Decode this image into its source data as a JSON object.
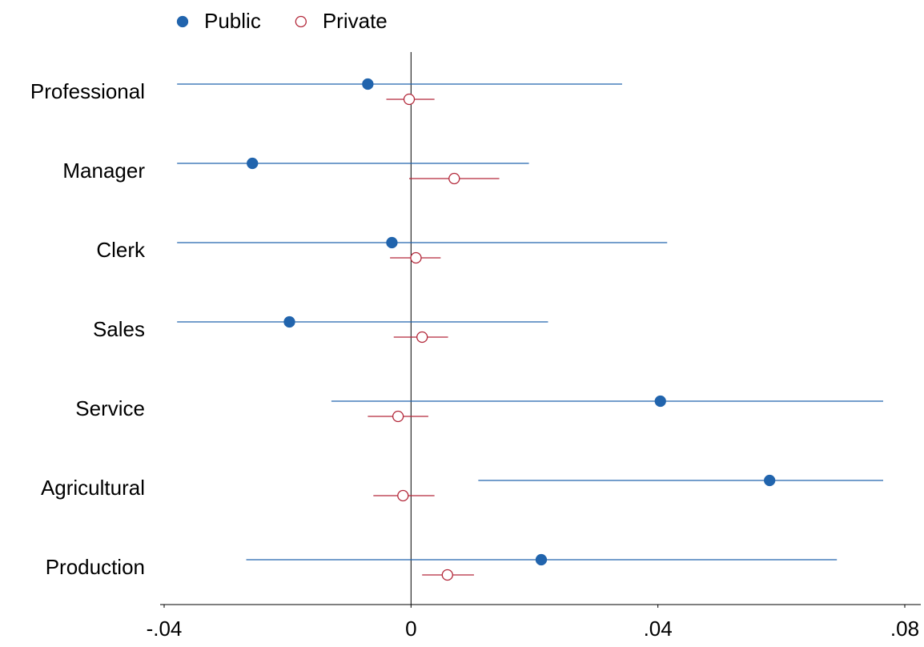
{
  "chart_data": {
    "type": "dot-ci",
    "categories": [
      "Professional",
      "Manager",
      "Clerk",
      "Sales",
      "Service",
      "Agricultural",
      "Production"
    ],
    "series": [
      {
        "name": "Public",
        "color": "#2164ad",
        "filled": true,
        "values": [
          -0.007,
          -0.0257,
          -0.0031,
          -0.0197,
          0.0404,
          0.0581,
          0.0211
        ],
        "lo": [
          -0.0379,
          -0.0379,
          -0.0379,
          -0.0379,
          -0.0129,
          0.0109,
          -0.0267
        ],
        "hi": [
          0.0342,
          0.0191,
          0.0415,
          0.0222,
          0.0765,
          0.0765,
          0.069
        ]
      },
      {
        "name": "Private",
        "color": "#b3283a",
        "filled": false,
        "values": [
          -0.0003,
          0.007,
          0.0008,
          0.0018,
          -0.0021,
          -0.0013,
          0.0059
        ],
        "lo": [
          -0.004,
          -0.0003,
          -0.0034,
          -0.0028,
          -0.007,
          -0.0061,
          0.0018
        ],
        "hi": [
          0.0038,
          0.0143,
          0.0048,
          0.006,
          0.0028,
          0.0038,
          0.0102
        ]
      }
    ],
    "xlim": [
      -0.04,
      0.08
    ],
    "xticks": [
      {
        "value": -0.04,
        "label": "-.04"
      },
      0,
      {
        "value": 0.04,
        "label": ".04"
      },
      {
        "value": 0.08,
        "label": ".08"
      }
    ],
    "legend": "top-left"
  }
}
